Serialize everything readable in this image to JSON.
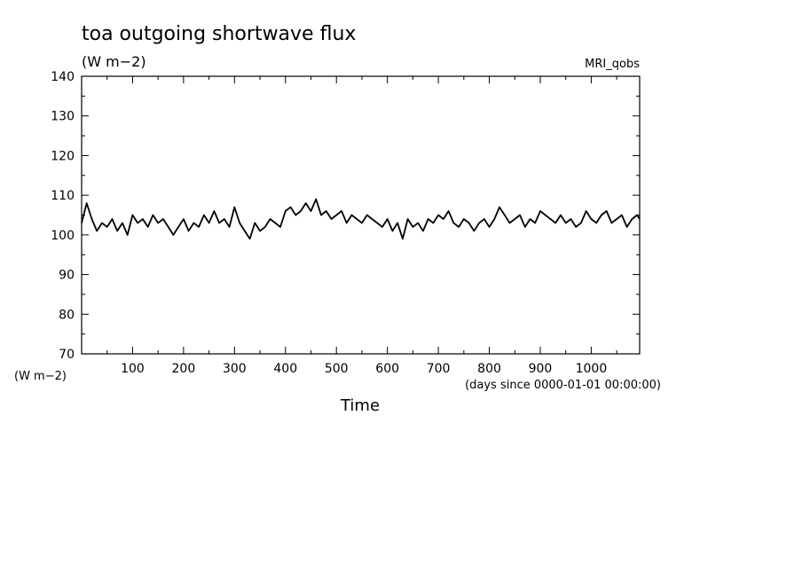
{
  "chart_data": {
    "type": "line",
    "title": "toa outgoing shortwave flux",
    "units": "(W m−2)",
    "y_units_label": "(W m−2)",
    "model_label": "MRI_qobs",
    "xlabel": "Time",
    "x_units_label": "(days since 0000-01-01 00:00:00)",
    "xlim": [
      0,
      1095
    ],
    "ylim": [
      70,
      140
    ],
    "x_ticks": [
      100,
      200,
      300,
      400,
      500,
      600,
      700,
      800,
      900,
      1000
    ],
    "y_ticks": [
      70,
      80,
      90,
      100,
      110,
      120,
      130,
      140
    ],
    "grid": false,
    "series": [
      {
        "x": [
          0,
          10,
          20,
          30,
          40,
          50,
          60,
          70,
          80,
          90,
          100,
          110,
          120,
          130,
          140,
          150,
          160,
          170,
          180,
          190,
          200,
          210,
          220,
          230,
          240,
          250,
          260,
          270,
          280,
          290,
          300,
          310,
          320,
          330,
          340,
          350,
          360,
          370,
          380,
          390,
          400,
          410,
          420,
          430,
          440,
          450,
          460,
          470,
          480,
          490,
          500,
          510,
          520,
          530,
          540,
          550,
          560,
          570,
          580,
          590,
          600,
          610,
          620,
          630,
          640,
          650,
          660,
          670,
          680,
          690,
          700,
          710,
          720,
          730,
          740,
          750,
          760,
          770,
          780,
          790,
          800,
          810,
          820,
          830,
          840,
          850,
          860,
          870,
          880,
          890,
          900,
          910,
          920,
          930,
          940,
          950,
          960,
          970,
          980,
          990,
          1000,
          1010,
          1020,
          1030,
          1040,
          1050,
          1060,
          1070,
          1080,
          1090,
          1095
        ],
        "y": [
          103,
          108,
          104,
          101,
          103,
          102,
          104,
          101,
          103,
          100,
          105,
          103,
          104,
          102,
          105,
          103,
          104,
          102,
          100,
          102,
          104,
          101,
          103,
          102,
          105,
          103,
          106,
          103,
          104,
          102,
          107,
          103,
          101,
          99,
          103,
          101,
          102,
          104,
          103,
          102,
          106,
          107,
          105,
          106,
          108,
          106,
          109,
          105,
          106,
          104,
          105,
          106,
          103,
          105,
          104,
          103,
          105,
          104,
          103,
          102,
          104,
          101,
          103,
          99,
          104,
          102,
          103,
          101,
          104,
          103,
          105,
          104,
          106,
          103,
          102,
          104,
          103,
          101,
          103,
          104,
          102,
          104,
          107,
          105,
          103,
          104,
          105,
          102,
          104,
          103,
          106,
          105,
          104,
          103,
          105,
          103,
          104,
          102,
          103,
          106,
          104,
          103,
          105,
          106,
          103,
          104,
          105,
          102,
          104,
          105,
          104
        ]
      }
    ]
  }
}
